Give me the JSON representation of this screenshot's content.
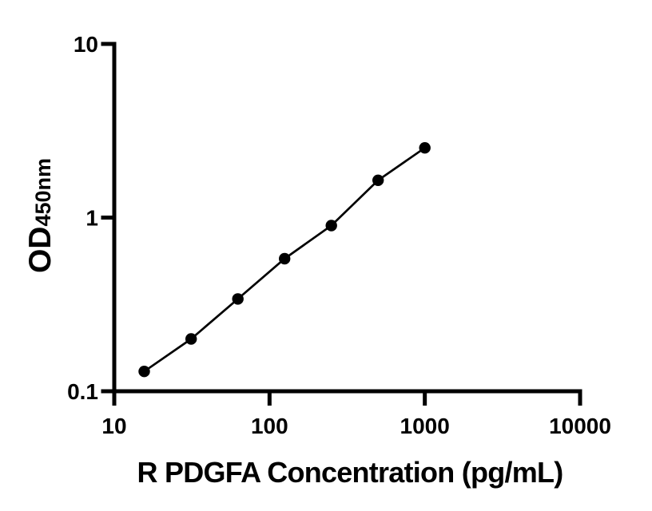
{
  "figure": {
    "background_color": "#ffffff"
  },
  "style": {
    "axis_color": "#000000",
    "tick_color": "#000000",
    "text_color": "#000000",
    "line_color": "#000000",
    "marker_color": "#000000"
  },
  "chart_data": {
    "type": "scatter",
    "xlabel": "R PDGFA Concentration (pg/mL)",
    "ylabel_main": "OD",
    "ylabel_sub": "450nm",
    "x_scale": "log",
    "y_scale": "log",
    "xlim": [
      10,
      10000
    ],
    "ylim": [
      0.1,
      10
    ],
    "x_ticks": [
      10,
      100,
      1000,
      10000
    ],
    "x_tick_labels": [
      "10",
      "100",
      "1000",
      "10000"
    ],
    "y_ticks": [
      0.1,
      1,
      10
    ],
    "y_tick_labels": [
      "0.1",
      "1",
      "10"
    ],
    "grid": false,
    "legend": null,
    "series": [
      {
        "name": "standard-curve",
        "marker": "filled-circle",
        "connect_points": true,
        "x": [
          15.6,
          31.25,
          62.5,
          125,
          250,
          500,
          1000
        ],
        "y": [
          0.13,
          0.2,
          0.34,
          0.58,
          0.9,
          1.64,
          2.52
        ]
      }
    ]
  }
}
